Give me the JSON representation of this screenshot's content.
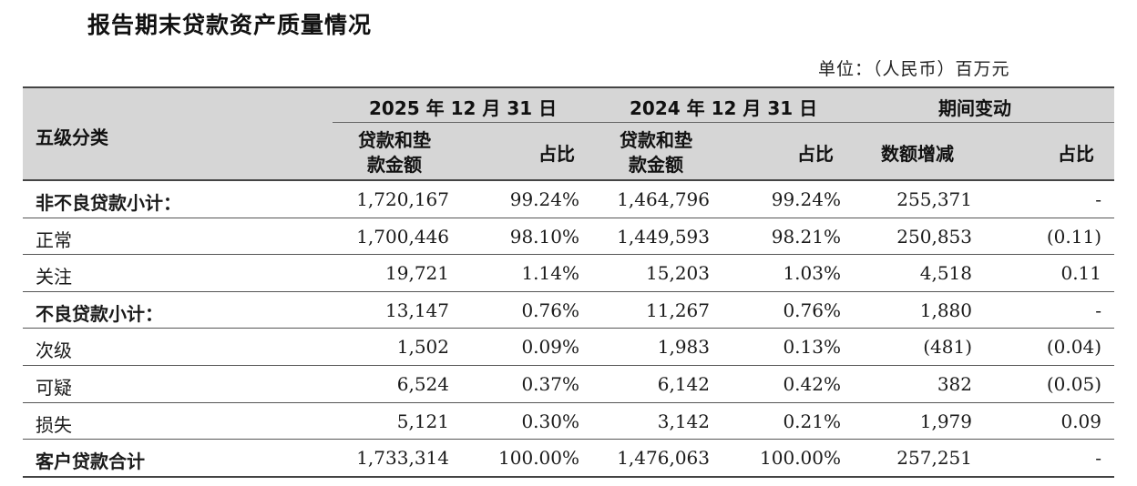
{
  "title": "报告期末贷款资产质量情况",
  "unit": "单位：（人民币）百万元",
  "header": {
    "category": "五级分类",
    "period_2025": "2025 年 12 月 31 日",
    "period_2024": "2024 年 12 月 31 日",
    "change": "期间变动",
    "amount_line1": "贷款和垫",
    "amount_line2": "款金额",
    "ratio": "占比",
    "delta": "数额增减",
    "delta_ratio": "占比"
  },
  "rows": [
    {
      "label": "非不良贷款小计：",
      "bold": true,
      "a2025": "1,720,167",
      "r2025": "99.24%",
      "a2024": "1,464,796",
      "r2024": "99.24%",
      "delta": "255,371",
      "dratio": "-"
    },
    {
      "label": "正常",
      "bold": false,
      "a2025": "1,700,446",
      "r2025": "98.10%",
      "a2024": "1,449,593",
      "r2024": "98.21%",
      "delta": "250,853",
      "dratio": "(0.11)"
    },
    {
      "label": "关注",
      "bold": false,
      "a2025": "19,721",
      "r2025": "1.14%",
      "a2024": "15,203",
      "r2024": "1.03%",
      "delta": "4,518",
      "dratio": "0.11"
    },
    {
      "label": "不良贷款小计：",
      "bold": true,
      "a2025": "13,147",
      "r2025": "0.76%",
      "a2024": "11,267",
      "r2024": "0.76%",
      "delta": "1,880",
      "dratio": "-"
    },
    {
      "label": "次级",
      "bold": false,
      "a2025": "1,502",
      "r2025": "0.09%",
      "a2024": "1,983",
      "r2024": "0.13%",
      "delta": "(481)",
      "dratio": "(0.04)"
    },
    {
      "label": "可疑",
      "bold": false,
      "a2025": "6,524",
      "r2025": "0.37%",
      "a2024": "6,142",
      "r2024": "0.42%",
      "delta": "382",
      "dratio": "(0.05)"
    },
    {
      "label": "损失",
      "bold": false,
      "a2025": "5,121",
      "r2025": "0.30%",
      "a2024": "3,142",
      "r2024": "0.21%",
      "delta": "1,979",
      "dratio": "0.09"
    },
    {
      "label": "客户贷款合计",
      "bold": true,
      "a2025": "1,733,314",
      "r2025": "100.00%",
      "a2024": "1,476,063",
      "r2024": "100.00%",
      "delta": "257,251",
      "dratio": "-"
    }
  ]
}
